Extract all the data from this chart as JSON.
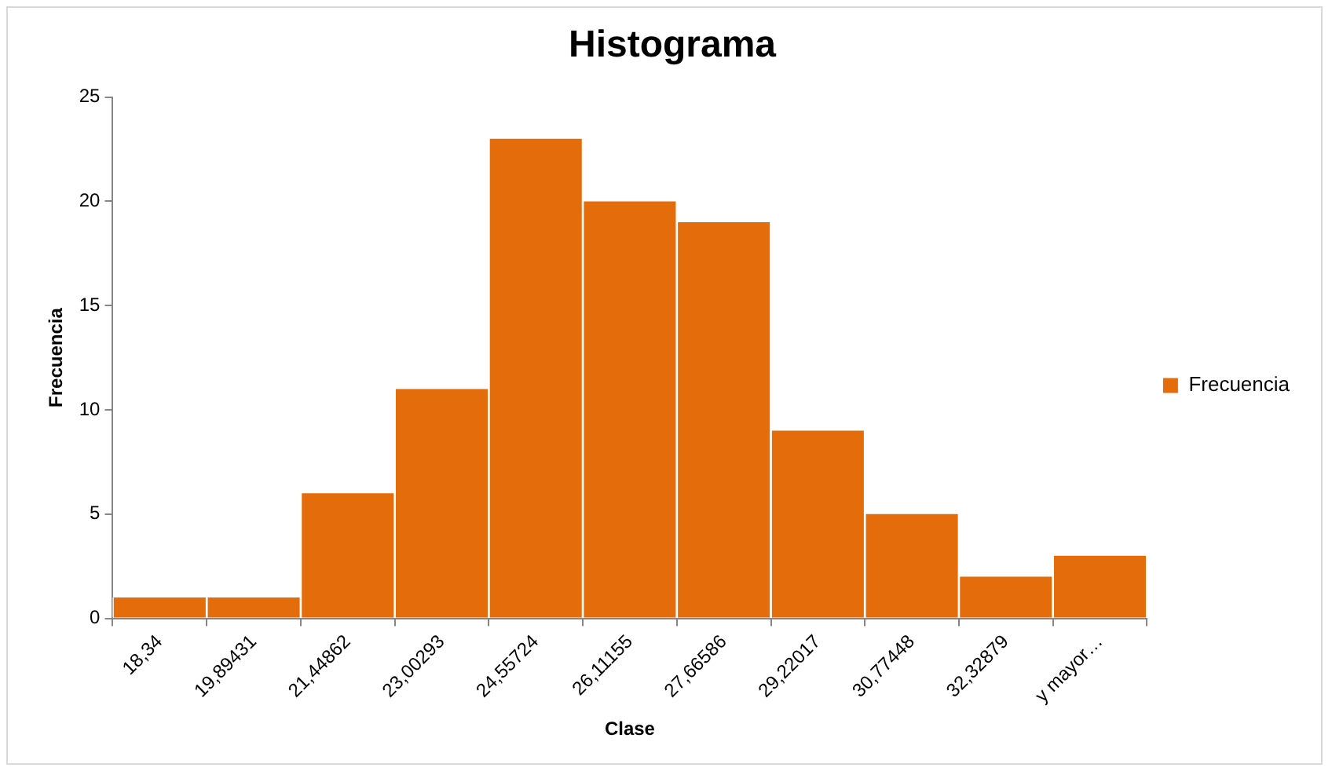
{
  "chart_data": {
    "type": "bar",
    "title": "Histograma",
    "xlabel": "Clase",
    "ylabel": "Frecuencia",
    "categories": [
      "18,34",
      "19,89431",
      "21,44862",
      "23,00293",
      "24,55724",
      "26,11155",
      "27,66586",
      "29,22017",
      "30,77448",
      "32,32879",
      "y mayor…"
    ],
    "series": [
      {
        "name": "Frecuencia",
        "color": "#e46c0a",
        "values": [
          1,
          1,
          6,
          11,
          23,
          20,
          19,
          9,
          5,
          2,
          3
        ]
      }
    ],
    "ylim": [
      0,
      25
    ],
    "yticks": [
      0,
      5,
      10,
      15,
      20,
      25
    ],
    "grid": false,
    "legend": "right"
  }
}
